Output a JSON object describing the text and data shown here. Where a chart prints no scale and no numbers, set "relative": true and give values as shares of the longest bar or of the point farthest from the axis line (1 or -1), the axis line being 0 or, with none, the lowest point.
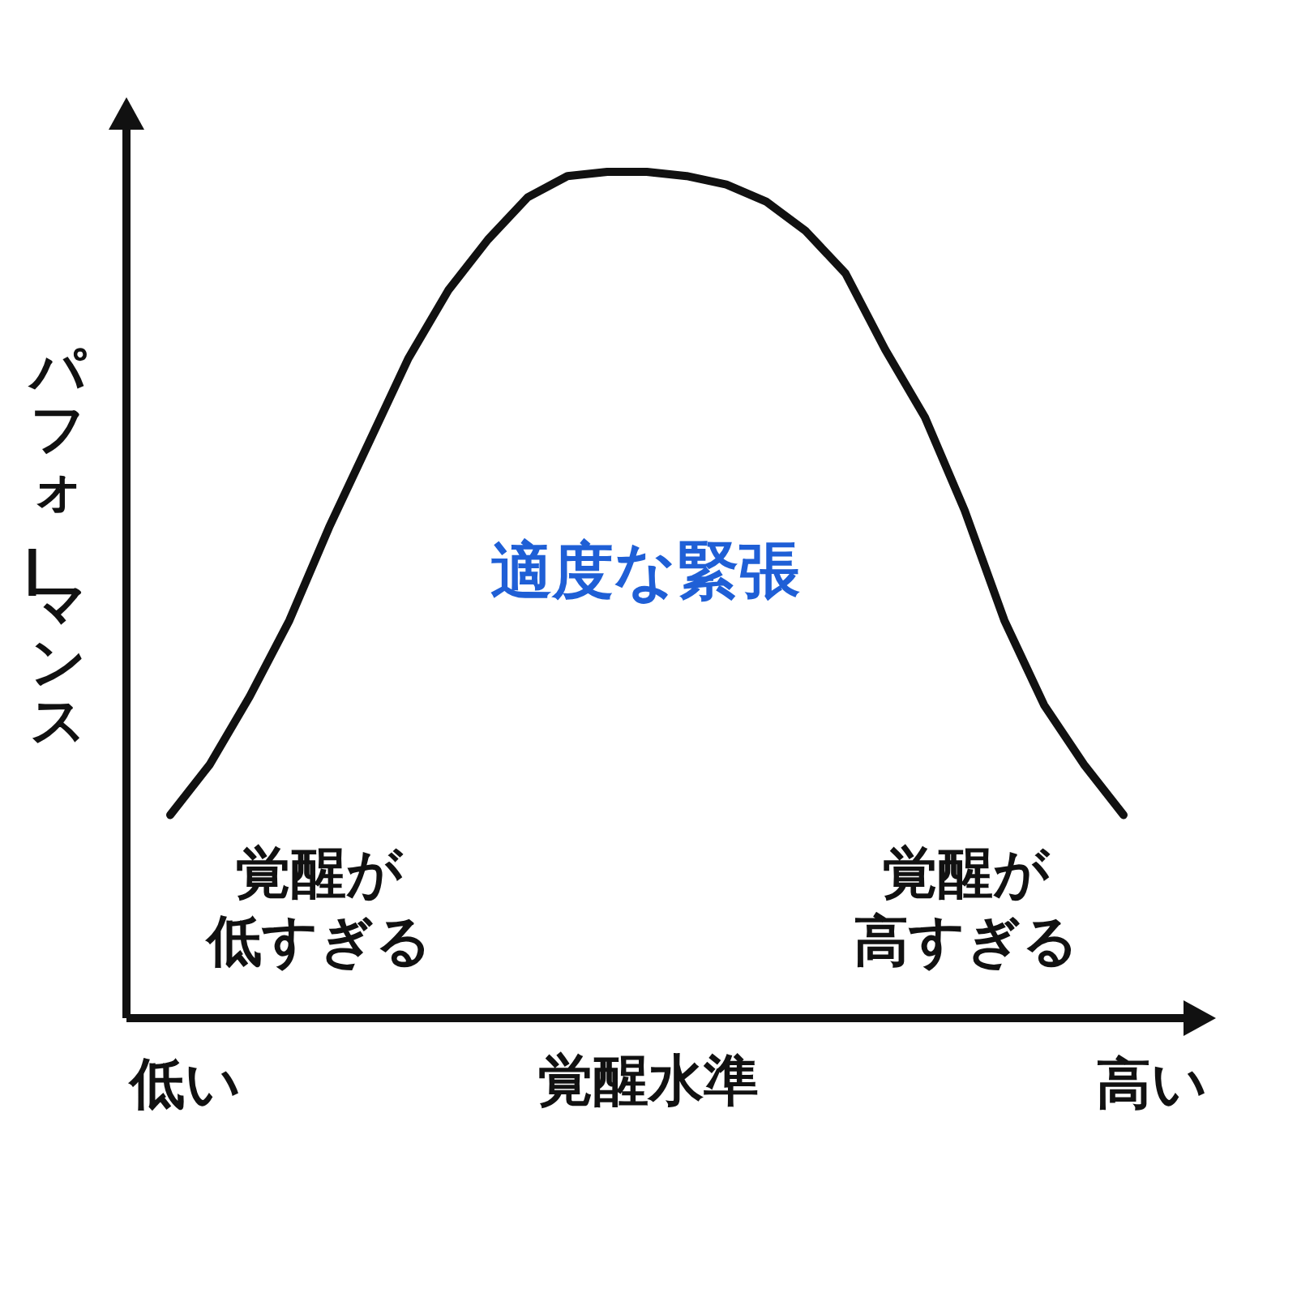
{
  "chart_data": {
    "type": "line",
    "relative": true,
    "xlabel": "覚醒水準",
    "ylabel": "パフォーマンス",
    "categories": [
      null,
      null,
      null,
      null,
      null,
      null,
      null,
      null,
      null,
      null,
      null,
      null,
      null,
      null,
      null,
      null,
      null,
      null,
      null,
      null,
      null,
      null,
      null,
      null,
      null
    ],
    "series": [
      {
        "color": "#111111",
        "values": [
          0.24,
          0.3,
          0.38,
          0.47,
          0.58,
          0.68,
          0.78,
          0.86,
          0.92,
          0.97,
          0.995,
          1.0,
          1.0,
          0.995,
          0.985,
          0.965,
          0.93,
          0.88,
          0.79,
          0.71,
          0.6,
          0.47,
          0.37,
          0.3,
          0.24
        ]
      }
    ],
    "marker": "none",
    "line_style": "solid",
    "annotations": [
      "適度な緊張",
      "覚醒が低すぎる",
      "覚醒が高すぎる",
      "低い",
      "高い"
    ]
  }
}
